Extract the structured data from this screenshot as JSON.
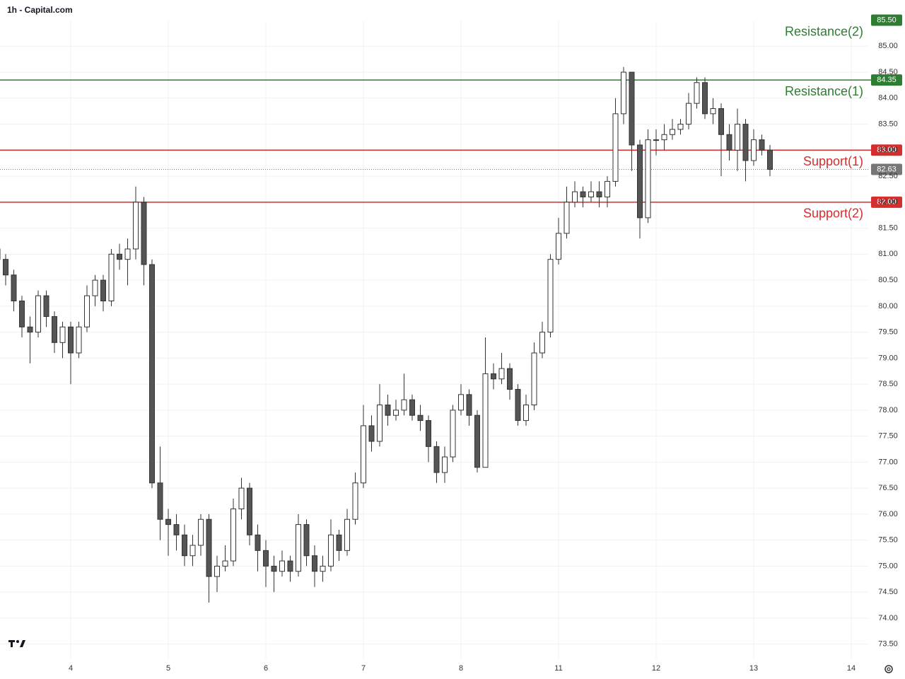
{
  "chart_data": {
    "type": "candlestick",
    "title": "1h - Capital.com",
    "categories": [
      null,
      null,
      null,
      null,
      null,
      null,
      null,
      null,
      null,
      "4",
      null,
      null,
      null,
      null,
      null,
      null,
      null,
      null,
      null,
      null,
      null,
      "5",
      null,
      null,
      null,
      null,
      null,
      null,
      null,
      null,
      null,
      null,
      null,
      "6",
      null,
      null,
      null,
      null,
      null,
      null,
      null,
      null,
      null,
      null,
      null,
      "7",
      null,
      null,
      null,
      null,
      null,
      null,
      null,
      null,
      null,
      null,
      null,
      "8",
      null,
      null,
      null,
      null,
      null,
      null,
      null,
      null,
      null,
      null,
      null,
      "11",
      null,
      null,
      null,
      null,
      null,
      null,
      null,
      null,
      null,
      null,
      null,
      "12",
      null,
      null,
      null,
      null,
      null,
      null,
      null,
      null,
      null,
      null,
      null,
      "13",
      null,
      null,
      null,
      null,
      null,
      null,
      null,
      null,
      null,
      null,
      null,
      "14",
      null
    ],
    "open": [
      81.1,
      80.9,
      80.6,
      80.1,
      79.6,
      79.5,
      80.2,
      79.8,
      79.3,
      79.6,
      79.1,
      79.6,
      80.2,
      80.5,
      80.1,
      81.0,
      80.9,
      81.1,
      82.0,
      80.8,
      76.6,
      75.9,
      75.8,
      75.6,
      75.2,
      75.4,
      75.9,
      74.8,
      75.0,
      75.1,
      76.1,
      76.5,
      75.6,
      75.3,
      75.0,
      74.9,
      75.1,
      74.9,
      75.8,
      75.2,
      74.9,
      75.0,
      75.6,
      75.3,
      75.9,
      76.6,
      77.7,
      77.4,
      78.1,
      77.9,
      78.0,
      78.2,
      77.9,
      77.8,
      77.3,
      76.8,
      77.1,
      78.0,
      78.3,
      77.9,
      76.9,
      78.7,
      78.6,
      78.8,
      78.4,
      77.8,
      78.1,
      79.1,
      79.5,
      80.9,
      81.4,
      82.0,
      82.2,
      82.1,
      82.2,
      82.1,
      82.4,
      83.7,
      84.5,
      83.1,
      81.7,
      83.2,
      83.2,
      83.3,
      83.4,
      83.5,
      83.9,
      84.3,
      83.7,
      83.8,
      83.3,
      83.0,
      83.5,
      82.8,
      83.2,
      83.0,
      null,
      null,
      null,
      null,
      null,
      null,
      null,
      null,
      null,
      null,
      null
    ],
    "high": [
      81.2,
      81.0,
      80.7,
      80.2,
      79.8,
      80.3,
      80.3,
      79.9,
      79.7,
      79.7,
      79.7,
      80.4,
      80.6,
      80.6,
      81.1,
      81.2,
      81.3,
      82.3,
      82.1,
      80.9,
      77.3,
      76.1,
      76.0,
      75.8,
      75.6,
      76.0,
      76.0,
      75.2,
      75.4,
      76.3,
      76.7,
      76.6,
      75.8,
      75.5,
      75.2,
      75.3,
      75.2,
      76.0,
      75.9,
      75.4,
      75.2,
      75.9,
      75.7,
      76.1,
      76.8,
      78.1,
      77.9,
      78.5,
      78.3,
      78.2,
      78.7,
      78.3,
      78.1,
      77.9,
      77.4,
      77.3,
      78.1,
      78.5,
      78.4,
      78.0,
      79.4,
      78.9,
      79.1,
      78.9,
      78.5,
      78.3,
      79.3,
      79.7,
      81.0,
      81.7,
      82.3,
      82.4,
      82.3,
      82.4,
      82.4,
      82.5,
      84.0,
      84.6,
      84.5,
      83.2,
      83.4,
      83.4,
      83.5,
      83.6,
      83.6,
      84.1,
      84.4,
      84.4,
      84.0,
      83.9,
      83.5,
      83.8,
      83.6,
      83.4,
      83.3,
      83.1,
      null,
      null,
      null,
      null,
      null,
      null,
      null,
      null,
      null,
      null,
      null
    ],
    "low": [
      80.7,
      80.4,
      79.9,
      79.4,
      78.9,
      79.4,
      79.6,
      79.1,
      79.0,
      78.5,
      79.0,
      79.5,
      80.0,
      79.9,
      80.0,
      80.7,
      80.4,
      80.9,
      80.4,
      76.5,
      75.5,
      75.2,
      75.3,
      75.0,
      75.0,
      75.2,
      74.3,
      74.5,
      74.9,
      75.0,
      75.9,
      75.4,
      74.9,
      74.6,
      74.5,
      74.8,
      74.7,
      74.8,
      75.0,
      74.6,
      74.7,
      74.9,
      75.1,
      75.2,
      75.8,
      76.5,
      77.2,
      77.3,
      77.7,
      77.8,
      77.9,
      77.8,
      77.6,
      77.0,
      76.6,
      76.6,
      77.0,
      77.9,
      77.7,
      76.8,
      76.9,
      78.4,
      78.5,
      78.2,
      77.7,
      77.7,
      78.0,
      79.0,
      79.4,
      80.8,
      81.3,
      81.9,
      81.9,
      82.0,
      81.9,
      81.9,
      82.3,
      83.5,
      82.6,
      81.3,
      81.6,
      82.9,
      83.0,
      83.2,
      83.3,
      83.4,
      83.8,
      83.6,
      83.5,
      82.5,
      82.8,
      82.6,
      82.4,
      82.7,
      82.9,
      82.5,
      null,
      null,
      null,
      null,
      null,
      null,
      null,
      null,
      null,
      null,
      null
    ],
    "close": [
      80.9,
      80.6,
      80.1,
      79.6,
      79.5,
      80.2,
      79.8,
      79.3,
      79.6,
      79.1,
      79.6,
      80.2,
      80.5,
      80.1,
      81.0,
      80.9,
      81.1,
      82.0,
      80.8,
      76.6,
      75.9,
      75.8,
      75.6,
      75.2,
      75.4,
      75.9,
      74.8,
      75.0,
      75.1,
      76.1,
      76.5,
      75.6,
      75.3,
      75.0,
      74.9,
      75.1,
      74.9,
      75.8,
      75.2,
      74.9,
      75.0,
      75.6,
      75.3,
      75.9,
      76.6,
      77.7,
      77.4,
      78.1,
      77.9,
      78.0,
      78.2,
      77.9,
      77.8,
      77.3,
      76.8,
      77.1,
      78.0,
      78.3,
      77.9,
      76.9,
      78.7,
      78.6,
      78.8,
      78.4,
      77.8,
      78.1,
      79.1,
      79.5,
      80.9,
      81.4,
      82.0,
      82.2,
      82.1,
      82.2,
      82.1,
      82.4,
      83.7,
      84.5,
      83.1,
      81.7,
      83.2,
      83.2,
      83.3,
      83.4,
      83.5,
      83.9,
      84.3,
      83.7,
      83.8,
      83.3,
      83.0,
      83.5,
      82.8,
      83.2,
      83.0,
      82.63,
      null,
      null,
      null,
      null,
      null,
      null,
      null,
      null,
      null,
      null,
      null
    ],
    "up_color": "#ffffff",
    "down_color": "#555555",
    "wick_color": "#333333",
    "ylim": [
      73.21,
      85.48
    ],
    "yticks": [
      {
        "value": 73.5,
        "label": "73.50"
      },
      {
        "value": 74,
        "label": "74.00"
      },
      {
        "value": 74.5,
        "label": "74.50"
      },
      {
        "value": 75,
        "label": "75.00"
      },
      {
        "value": 75.5,
        "label": "75.50"
      },
      {
        "value": 76,
        "label": "76.00"
      },
      {
        "value": 76.5,
        "label": "76.50"
      },
      {
        "value": 77,
        "label": "77.00"
      },
      {
        "value": 77.5,
        "label": "77.50"
      },
      {
        "value": 78,
        "label": "78.00"
      },
      {
        "value": 78.5,
        "label": "78.50"
      },
      {
        "value": 79,
        "label": "79.00"
      },
      {
        "value": 79.5,
        "label": "79.50"
      },
      {
        "value": 80,
        "label": "80.00"
      },
      {
        "value": 80.5,
        "label": "80.50"
      },
      {
        "value": 81,
        "label": "81.00"
      },
      {
        "value": 81.5,
        "label": "81.50"
      },
      {
        "value": 82,
        "label": "82.00"
      },
      {
        "value": 82.5,
        "label": "82.50"
      },
      {
        "value": 83,
        "label": "83.00"
      },
      {
        "value": 83.5,
        "label": "83.50"
      },
      {
        "value": 84,
        "label": "84.00"
      },
      {
        "value": 84.5,
        "label": "84.50"
      },
      {
        "value": 85,
        "label": "85.00"
      }
    ],
    "grid": true,
    "levels": [
      {
        "label": "Resistance(2)",
        "value": 85.5,
        "value_label": "85.50",
        "color": "#2e7d32"
      },
      {
        "label": "Resistance(1)",
        "value": 84.35,
        "value_label": "84.35",
        "color": "#2e7d32"
      },
      {
        "label": "Support(1)",
        "value": 83.0,
        "value_label": "83.00",
        "color": "#d32f2f"
      },
      {
        "label": "Support(2)",
        "value": 82.0,
        "value_label": "82.00",
        "color": "#d32f2f"
      }
    ],
    "last_price": {
      "value": 82.63,
      "label": "82.63",
      "color": "#777777"
    }
  }
}
